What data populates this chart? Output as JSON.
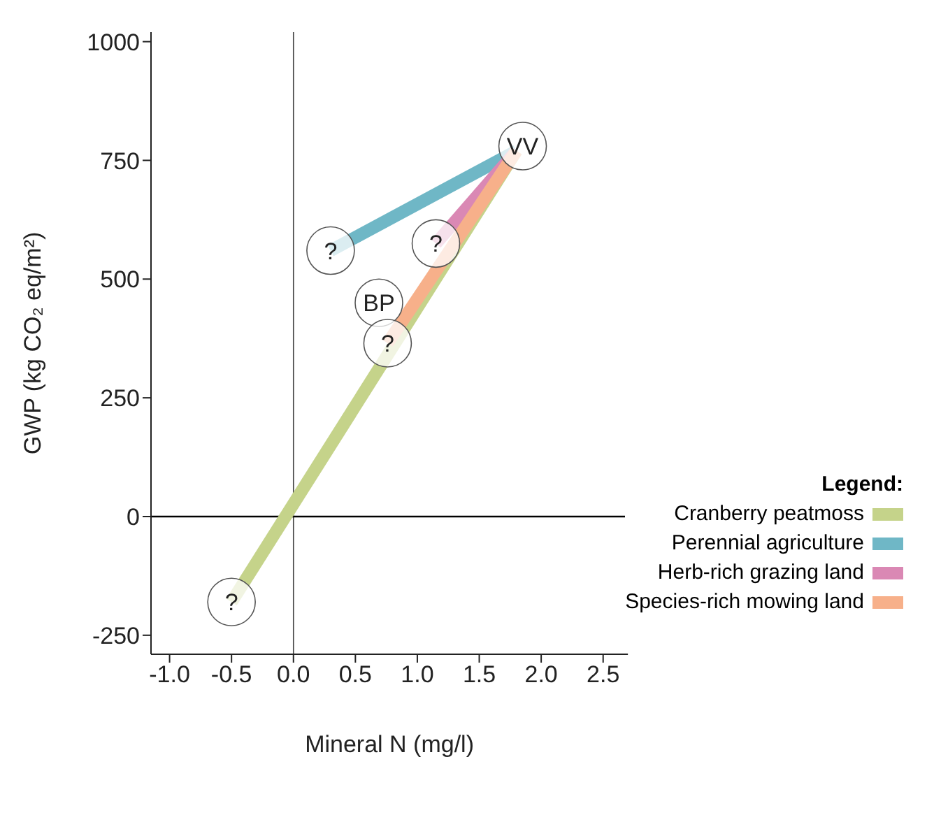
{
  "chart_data": {
    "type": "line",
    "xlabel": "Mineral N (mg/l)",
    "ylabel": "GWP (kg CO₂ eq/m²)",
    "legend_title": "Legend:",
    "legend": "bottom right",
    "grid": false,
    "xlim": [
      -1.15,
      2.7
    ],
    "ylim": [
      -290,
      1020
    ],
    "xticks": [
      {
        "value": -1,
        "label": "-1.0"
      },
      {
        "value": -0.5,
        "label": "-0.5"
      },
      {
        "value": 0,
        "label": "0.0"
      },
      {
        "value": 0.5,
        "label": "0.5"
      },
      {
        "value": 1,
        "label": "1.0"
      },
      {
        "value": 1.5,
        "label": "1.5"
      },
      {
        "value": 2,
        "label": "2.0"
      },
      {
        "value": 2.5,
        "label": "2.5"
      }
    ],
    "yticks": [
      -250,
      0,
      250,
      500,
      750,
      1000
    ],
    "series": [
      {
        "name": "Cranberry peatmoss",
        "color": "#c5d38a",
        "x": [
          1.8,
          -0.5
        ],
        "values": [
          770,
          -180
        ]
      },
      {
        "name": "Perennial agriculture",
        "color": "#6fb7c6",
        "x": [
          1.8,
          0.3
        ],
        "values": [
          770,
          560
        ]
      },
      {
        "name": "Herb-rich grazing land",
        "color": "#da88b4",
        "x": [
          1.8,
          1.15
        ],
        "values": [
          770,
          575
        ]
      },
      {
        "name": "Species-rich mowing land",
        "color": "#f7b08a",
        "x": [
          1.8,
          0.76
        ],
        "values": [
          770,
          365
        ]
      }
    ],
    "ref_lines": [
      {
        "axis": "x",
        "value": 0,
        "color": "#444444"
      },
      {
        "axis": "y",
        "value": 0,
        "color": "#000000"
      }
    ],
    "annotations": [
      {
        "text": "VV",
        "x": 1.85,
        "y": 780
      },
      {
        "text": "BP",
        "x": 0.69,
        "y": 450
      },
      {
        "text": "?",
        "x": -0.5,
        "y": -180
      },
      {
        "text": "?",
        "x": 0.3,
        "y": 560
      },
      {
        "text": "?",
        "x": 1.15,
        "y": 575
      },
      {
        "text": "?",
        "x": 0.76,
        "y": 365
      }
    ]
  }
}
